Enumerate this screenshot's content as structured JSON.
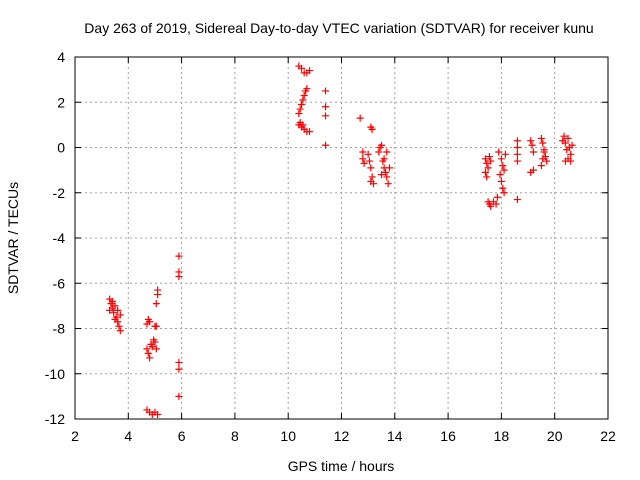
{
  "chart_data": {
    "type": "scatter",
    "title": "Day 263 of 2019, Sidereal Day-to-day VTEC variation (SDTVAR) for receiver kunu",
    "xlabel": "GPS time / hours",
    "ylabel": "SDTVAR / TECUs",
    "xlim": [
      2,
      22
    ],
    "ylim": [
      -12,
      4
    ],
    "xticks": [
      "2",
      "4",
      "6",
      "8",
      "10",
      "12",
      "14",
      "16",
      "18",
      "20",
      "22"
    ],
    "yticks": [
      "4",
      "2",
      "0",
      "-2",
      "-4",
      "-6",
      "-8",
      "-10",
      "-12"
    ],
    "grid": true,
    "marker": "plus",
    "color": "#ff0000",
    "series": [
      {
        "name": "SDTVAR",
        "points": [
          [
            3.3,
            -6.7
          ],
          [
            3.35,
            -6.9
          ],
          [
            3.4,
            -7.1
          ],
          [
            3.45,
            -7.3
          ],
          [
            3.5,
            -7.0
          ],
          [
            3.55,
            -7.5
          ],
          [
            3.6,
            -7.7
          ],
          [
            3.65,
            -7.9
          ],
          [
            3.7,
            -8.1
          ],
          [
            3.4,
            -6.8
          ],
          [
            3.6,
            -7.2
          ],
          [
            3.5,
            -7.6
          ],
          [
            3.3,
            -7.2
          ],
          [
            3.7,
            -7.4
          ],
          [
            4.7,
            -7.8
          ],
          [
            4.75,
            -7.6
          ],
          [
            4.8,
            -7.7
          ],
          [
            4.7,
            -8.9
          ],
          [
            4.75,
            -9.1
          ],
          [
            4.8,
            -9.3
          ],
          [
            4.85,
            -8.7
          ],
          [
            4.9,
            -8.8
          ],
          [
            4.95,
            -8.5
          ],
          [
            5.0,
            -8.6
          ],
          [
            5.05,
            -8.9
          ],
          [
            5.0,
            -7.9
          ],
          [
            5.05,
            -6.9
          ],
          [
            5.1,
            -6.5
          ],
          [
            5.1,
            -6.3
          ],
          [
            5.05,
            -7.9
          ],
          [
            4.7,
            -11.6
          ],
          [
            4.8,
            -11.7
          ],
          [
            4.9,
            -11.8
          ],
          [
            5.0,
            -11.7
          ],
          [
            5.1,
            -11.8
          ],
          [
            5.9,
            -4.8
          ],
          [
            5.9,
            -5.5
          ],
          [
            5.9,
            -5.7
          ],
          [
            5.9,
            -9.5
          ],
          [
            5.9,
            -9.8
          ],
          [
            5.9,
            -11.0
          ],
          [
            10.4,
            3.6
          ],
          [
            10.5,
            3.5
          ],
          [
            10.6,
            3.3
          ],
          [
            10.7,
            3.3
          ],
          [
            10.8,
            3.4
          ],
          [
            10.4,
            1.5
          ],
          [
            10.45,
            1.7
          ],
          [
            10.5,
            1.9
          ],
          [
            10.55,
            2.1
          ],
          [
            10.6,
            2.3
          ],
          [
            10.65,
            2.5
          ],
          [
            10.7,
            2.6
          ],
          [
            10.4,
            1.0
          ],
          [
            10.5,
            0.9
          ],
          [
            10.6,
            0.8
          ],
          [
            10.7,
            0.7
          ],
          [
            10.8,
            0.7
          ],
          [
            10.45,
            1.1
          ],
          [
            10.55,
            1.0
          ],
          [
            11.4,
            2.5
          ],
          [
            11.4,
            1.8
          ],
          [
            11.4,
            1.4
          ],
          [
            11.4,
            0.1
          ],
          [
            12.7,
            1.3
          ],
          [
            12.8,
            -0.2
          ],
          [
            12.8,
            -0.5
          ],
          [
            12.85,
            -0.7
          ],
          [
            13.1,
            0.9
          ],
          [
            13.15,
            0.8
          ],
          [
            13.0,
            -0.3
          ],
          [
            13.05,
            -0.6
          ],
          [
            13.1,
            -0.9
          ],
          [
            13.1,
            -1.5
          ],
          [
            13.2,
            -1.6
          ],
          [
            13.15,
            -1.3
          ],
          [
            13.4,
            -0.2
          ],
          [
            13.5,
            0.1
          ],
          [
            13.55,
            -0.6
          ],
          [
            13.6,
            -0.9
          ],
          [
            13.65,
            -1.1
          ],
          [
            13.7,
            -1.3
          ],
          [
            13.75,
            -1.6
          ],
          [
            13.45,
            0.0
          ],
          [
            13.8,
            -0.9
          ],
          [
            13.6,
            -0.5
          ],
          [
            13.7,
            -0.2
          ],
          [
            13.5,
            -1.2
          ],
          [
            17.4,
            -0.5
          ],
          [
            17.45,
            -0.7
          ],
          [
            17.5,
            -0.9
          ],
          [
            17.55,
            -0.4
          ],
          [
            17.6,
            -0.6
          ],
          [
            17.4,
            -1.1
          ],
          [
            17.45,
            -1.3
          ],
          [
            17.5,
            -2.4
          ],
          [
            17.55,
            -2.5
          ],
          [
            17.6,
            -2.6
          ],
          [
            17.7,
            -2.4
          ],
          [
            17.8,
            -2.5
          ],
          [
            17.9,
            -0.2
          ],
          [
            18.0,
            -0.5
          ],
          [
            18.05,
            -0.8
          ],
          [
            18.1,
            -1.0
          ],
          [
            17.95,
            -1.2
          ],
          [
            18.0,
            -1.5
          ],
          [
            18.05,
            -1.8
          ],
          [
            18.1,
            -2.0
          ],
          [
            17.85,
            -2.2
          ],
          [
            18.15,
            -0.3
          ],
          [
            18.6,
            0.3
          ],
          [
            18.6,
            0.0
          ],
          [
            18.6,
            -0.3
          ],
          [
            18.6,
            -0.6
          ],
          [
            18.6,
            -2.3
          ],
          [
            19.1,
            0.3
          ],
          [
            19.15,
            0.1
          ],
          [
            19.2,
            -0.2
          ],
          [
            19.1,
            -1.1
          ],
          [
            19.2,
            -1.0
          ],
          [
            19.5,
            0.4
          ],
          [
            19.55,
            0.2
          ],
          [
            19.6,
            -0.1
          ],
          [
            19.65,
            -0.4
          ],
          [
            19.7,
            -0.6
          ],
          [
            19.5,
            -0.8
          ],
          [
            19.55,
            -0.5
          ],
          [
            19.6,
            -0.2
          ],
          [
            20.3,
            0.3
          ],
          [
            20.35,
            0.5
          ],
          [
            20.4,
            0.2
          ],
          [
            20.45,
            -0.1
          ],
          [
            20.5,
            0.4
          ],
          [
            20.55,
            0.0
          ],
          [
            20.6,
            -0.3
          ],
          [
            20.4,
            -0.6
          ],
          [
            20.5,
            -0.5
          ],
          [
            20.6,
            -0.6
          ],
          [
            20.65,
            0.1
          ]
        ]
      }
    ]
  }
}
